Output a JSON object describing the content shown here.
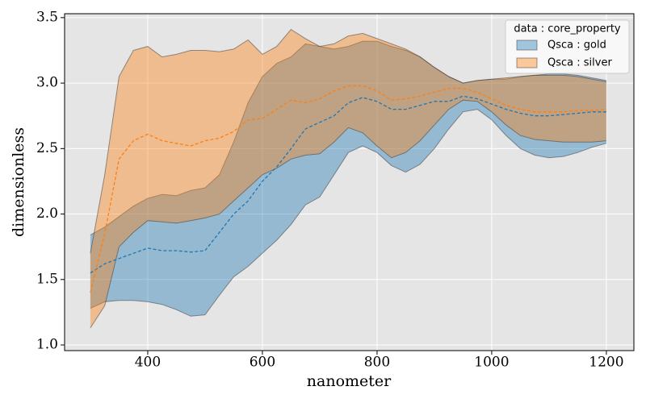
{
  "chart_data": {
    "type": "band",
    "xlabel": "nanometer",
    "ylabel": "dimensionless",
    "legend_title": "data : core_property",
    "legend_loc": "upper right",
    "grid": true,
    "x": [
      300,
      325,
      350,
      375,
      400,
      425,
      450,
      475,
      500,
      525,
      550,
      575,
      600,
      625,
      650,
      675,
      700,
      725,
      750,
      775,
      800,
      825,
      850,
      875,
      900,
      925,
      950,
      975,
      1000,
      1025,
      1050,
      1075,
      1100,
      1125,
      1150,
      1175,
      1200
    ],
    "xlim": [
      255,
      1248
    ],
    "xticks": [
      400,
      600,
      800,
      1000,
      1200
    ],
    "ylim": [
      0.957,
      3.53
    ],
    "yticks": [
      {
        "value": 1,
        "label": "1.0"
      },
      1.5,
      {
        "value": 2,
        "label": "2.0"
      },
      2.5,
      {
        "value": 3,
        "label": "3.0"
      },
      3.5
    ],
    "series": [
      {
        "name": "Qsca : gold",
        "color": "#1f77b4",
        "values": [
          1.55,
          1.62,
          1.66,
          1.7,
          1.74,
          1.72,
          1.72,
          1.71,
          1.72,
          1.86,
          2.0,
          2.1,
          2.25,
          2.36,
          2.5,
          2.65,
          2.7,
          2.75,
          2.85,
          2.89,
          2.86,
          2.8,
          2.8,
          2.83,
          2.86,
          2.86,
          2.9,
          2.88,
          2.84,
          2.8,
          2.77,
          2.75,
          2.75,
          2.76,
          2.77,
          2.78,
          2.78
        ],
        "lower": [
          1.28,
          1.33,
          1.34,
          1.34,
          1.33,
          1.31,
          1.27,
          1.22,
          1.23,
          1.38,
          1.52,
          1.6,
          1.7,
          1.8,
          1.92,
          2.07,
          2.13,
          2.3,
          2.47,
          2.52,
          2.47,
          2.37,
          2.32,
          2.38,
          2.5,
          2.65,
          2.78,
          2.8,
          2.72,
          2.6,
          2.5,
          2.45,
          2.43,
          2.44,
          2.47,
          2.51,
          2.54
        ],
        "upper": [
          1.84,
          1.9,
          1.98,
          2.06,
          2.12,
          2.15,
          2.14,
          2.18,
          2.2,
          2.3,
          2.55,
          2.85,
          3.05,
          3.15,
          3.2,
          3.3,
          3.28,
          3.26,
          3.28,
          3.32,
          3.32,
          3.28,
          3.25,
          3.2,
          3.12,
          3.05,
          3.0,
          3.02,
          3.03,
          3.03,
          3.05,
          3.06,
          3.07,
          3.07,
          3.06,
          3.04,
          3.02
        ]
      },
      {
        "name": "Qsca : silver",
        "color": "#ff7f0e",
        "values": [
          1.4,
          1.85,
          2.42,
          2.56,
          2.61,
          2.56,
          2.54,
          2.52,
          2.56,
          2.58,
          2.63,
          2.72,
          2.73,
          2.8,
          2.87,
          2.85,
          2.88,
          2.94,
          2.98,
          2.98,
          2.94,
          2.87,
          2.88,
          2.9,
          2.93,
          2.96,
          2.96,
          2.93,
          2.88,
          2.83,
          2.8,
          2.78,
          2.78,
          2.78,
          2.79,
          2.79,
          2.8
        ],
        "lower": [
          1.13,
          1.3,
          1.75,
          1.86,
          1.95,
          1.94,
          1.93,
          1.95,
          1.97,
          2.0,
          2.1,
          2.2,
          2.3,
          2.35,
          2.42,
          2.45,
          2.46,
          2.55,
          2.66,
          2.62,
          2.52,
          2.43,
          2.47,
          2.56,
          2.68,
          2.8,
          2.87,
          2.86,
          2.78,
          2.68,
          2.6,
          2.57,
          2.56,
          2.55,
          2.55,
          2.55,
          2.56
        ],
        "upper": [
          1.7,
          2.3,
          3.05,
          3.25,
          3.28,
          3.2,
          3.22,
          3.25,
          3.25,
          3.24,
          3.26,
          3.33,
          3.22,
          3.28,
          3.41,
          3.34,
          3.28,
          3.3,
          3.36,
          3.38,
          3.34,
          3.3,
          3.26,
          3.2,
          3.12,
          3.05,
          3.0,
          3.02,
          3.03,
          3.04,
          3.05,
          3.06,
          3.06,
          3.06,
          3.05,
          3.03,
          3.01
        ]
      }
    ]
  }
}
